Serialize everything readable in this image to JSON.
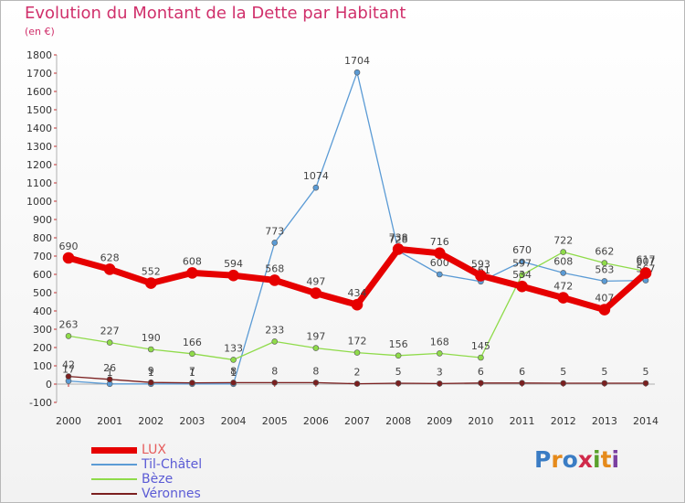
{
  "title": "Evolution du Montant de la Dette par Habitant",
  "unit": "(en €)",
  "logo": {
    "text": "Proxiti",
    "letter_colors": [
      "#3a7cc4",
      "#e58a1b",
      "#3a7cc4",
      "#d02a4a",
      "#5aa02c",
      "#e58a1b",
      "#7a3fa0"
    ]
  },
  "chart_data": {
    "type": "line",
    "title": "Evolution du Montant de la Dette par Habitant",
    "ylabel": "(en €)",
    "xlabel": "",
    "ylim": [
      -100,
      1800
    ],
    "yticks": [
      -100,
      0,
      100,
      200,
      300,
      400,
      500,
      600,
      700,
      800,
      900,
      1000,
      1100,
      1200,
      1300,
      1400,
      1500,
      1600,
      1700,
      1800
    ],
    "x": [
      "2000",
      "2001",
      "2002",
      "2003",
      "2004",
      "2005",
      "2006",
      "2007",
      "2008",
      "2009",
      "2010",
      "2011",
      "2012",
      "2013",
      "2014"
    ],
    "grid": false,
    "legend": "bottom-left",
    "series": [
      {
        "name": "Til-Châtel",
        "color": "#5b9bd5",
        "width": 1.3,
        "marker": 3,
        "values": [
          17,
          1,
          1,
          1,
          1,
          773,
          1074,
          1704,
          728,
          600,
          561,
          670,
          608,
          563,
          567
        ],
        "labels": [
          "17",
          "1",
          "1",
          "1",
          "1",
          "773",
          "1074",
          "1704",
          "728",
          "600",
          "561",
          "670",
          "608",
          "563",
          "567"
        ]
      },
      {
        "name": "Bèze",
        "color": "#8fdb4a",
        "width": 1.3,
        "marker": 3,
        "values": [
          263,
          227,
          190,
          166,
          133,
          233,
          197,
          172,
          156,
          168,
          145,
          597,
          722,
          662,
          617
        ],
        "labels": [
          "263",
          "227",
          "190",
          "166",
          "133",
          "233",
          "197",
          "172",
          "156",
          "168",
          "145",
          "597",
          "722",
          "662",
          "617"
        ]
      },
      {
        "name": "Véronnes",
        "color": "#7b1f1f",
        "width": 1.3,
        "marker": 3,
        "values": [
          42,
          26,
          9,
          7,
          8,
          8,
          8,
          2,
          5,
          3,
          6,
          6,
          5,
          5,
          5
        ],
        "labels": [
          "42",
          "26",
          "9",
          "7",
          "8",
          "8",
          "8",
          "2",
          "5",
          "3",
          "6",
          "6",
          "5",
          "5",
          "5"
        ]
      },
      {
        "name": "LUX",
        "color": "#e60000",
        "width": 7,
        "marker": 6,
        "values": [
          690,
          628,
          552,
          608,
          594,
          568,
          497,
          434,
          738,
          716,
          593,
          534,
          472,
          407,
          607
        ],
        "labels": [
          "690",
          "628",
          "552",
          "608",
          "594",
          "568",
          "497",
          "434",
          "738",
          "716",
          "593",
          "534",
          "472",
          "407",
          "607"
        ]
      }
    ],
    "legend_order": [
      "LUX",
      "Til-Châtel",
      "Bèze",
      "Véronnes"
    ]
  }
}
